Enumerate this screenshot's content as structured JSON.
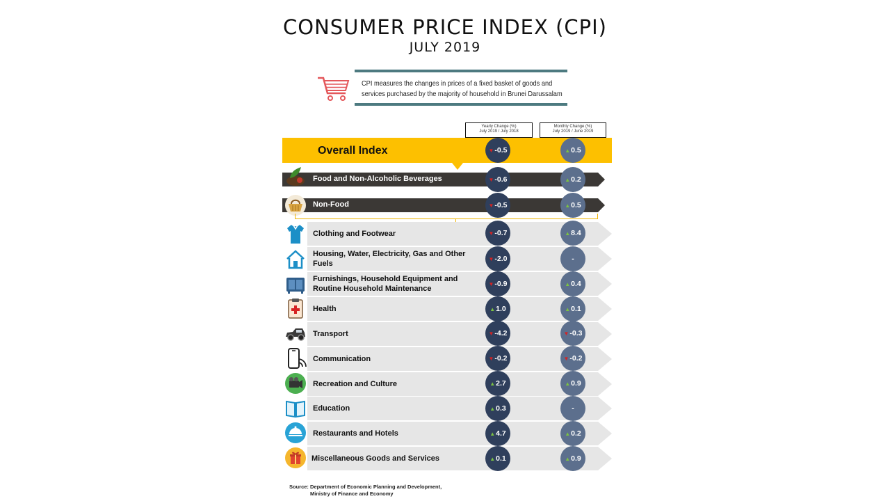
{
  "title": "CONSUMER PRICE INDEX (CPI)",
  "subtitle": "JULY 2019",
  "definition": "CPI measures the changes in prices of a fixed basket of goods and services purchased by the majority of household in Brunei Darussalam",
  "headers": {
    "yearly_line1": "Yearly Change (%)",
    "yearly_line2": "July 2019 / July 2018",
    "monthly_line1": "Monthly Change (%)",
    "monthly_line2": "July 2019 / June 2019"
  },
  "overall": {
    "label": "Overall Index",
    "yearly": "-0.5",
    "yearly_dir": "down",
    "monthly": "0.5",
    "monthly_dir": "up"
  },
  "groups": [
    {
      "label": "Food and Non-Alcoholic Beverages",
      "icon": "food-leaf-icon",
      "yearly": "-0.6",
      "yearly_dir": "down",
      "monthly": "0.2",
      "monthly_dir": "up"
    },
    {
      "label": "Non-Food",
      "icon": "basket-icon",
      "yearly": "-0.5",
      "yearly_dir": "down",
      "monthly": "0.5",
      "monthly_dir": "up"
    }
  ],
  "categories": [
    {
      "label": "Clothing and Footwear",
      "icon": "shirt-icon",
      "yearly": "-0.7",
      "yearly_dir": "down",
      "monthly": "8.4",
      "monthly_dir": "up"
    },
    {
      "label": "Housing, Water, Electricity, Gas and Other Fuels",
      "icon": "house-icon",
      "yearly": "-2.0",
      "yearly_dir": "down",
      "monthly": "-",
      "monthly_dir": "none"
    },
    {
      "label": "Furnishings, Household Equipment and Routine Household Maintenance",
      "icon": "furniture-icon",
      "yearly": "-0.9",
      "yearly_dir": "down",
      "monthly": "0.4",
      "monthly_dir": "up"
    },
    {
      "label": "Health",
      "icon": "medical-clipboard-icon",
      "yearly": "1.0",
      "yearly_dir": "up",
      "monthly": "0.1",
      "monthly_dir": "up"
    },
    {
      "label": "Transport",
      "icon": "car-icon",
      "yearly": "-4.2",
      "yearly_dir": "down",
      "monthly": "-0.3",
      "monthly_dir": "down"
    },
    {
      "label": "Communication",
      "icon": "phone-icon",
      "yearly": "-0.2",
      "yearly_dir": "down",
      "monthly": "-0.2",
      "monthly_dir": "down"
    },
    {
      "label": "Recreation and Culture",
      "icon": "camera-icon",
      "yearly": "2.7",
      "yearly_dir": "up",
      "monthly": "0.9",
      "monthly_dir": "up"
    },
    {
      "label": "Education",
      "icon": "book-icon",
      "yearly": "0.3",
      "yearly_dir": "up",
      "monthly": "-",
      "monthly_dir": "none"
    },
    {
      "label": "Restaurants and Hotels",
      "icon": "food-cloche-icon",
      "yearly": "4.7",
      "yearly_dir": "up",
      "monthly": "0.2",
      "monthly_dir": "up"
    },
    {
      "label": "Miscellaneous Goods and Services",
      "icon": "gift-icon",
      "yearly": "0.1",
      "yearly_dir": "up",
      "monthly": "0.9",
      "monthly_dir": "up"
    }
  ],
  "source_label": "Source:",
  "source_line1": "Department of Economic Planning and Development,",
  "source_line2": "Ministry of Finance and Economy",
  "colors": {
    "overall_bg": "#fdc000",
    "dark_bar": "#3b3835",
    "row_bg": "#e6e6e6",
    "yearly_circle": "#2f3f5c",
    "monthly_circle": "#5c6f8d",
    "up": "#7cc242",
    "down": "#d62222",
    "accent_line": "#4d7a80"
  }
}
